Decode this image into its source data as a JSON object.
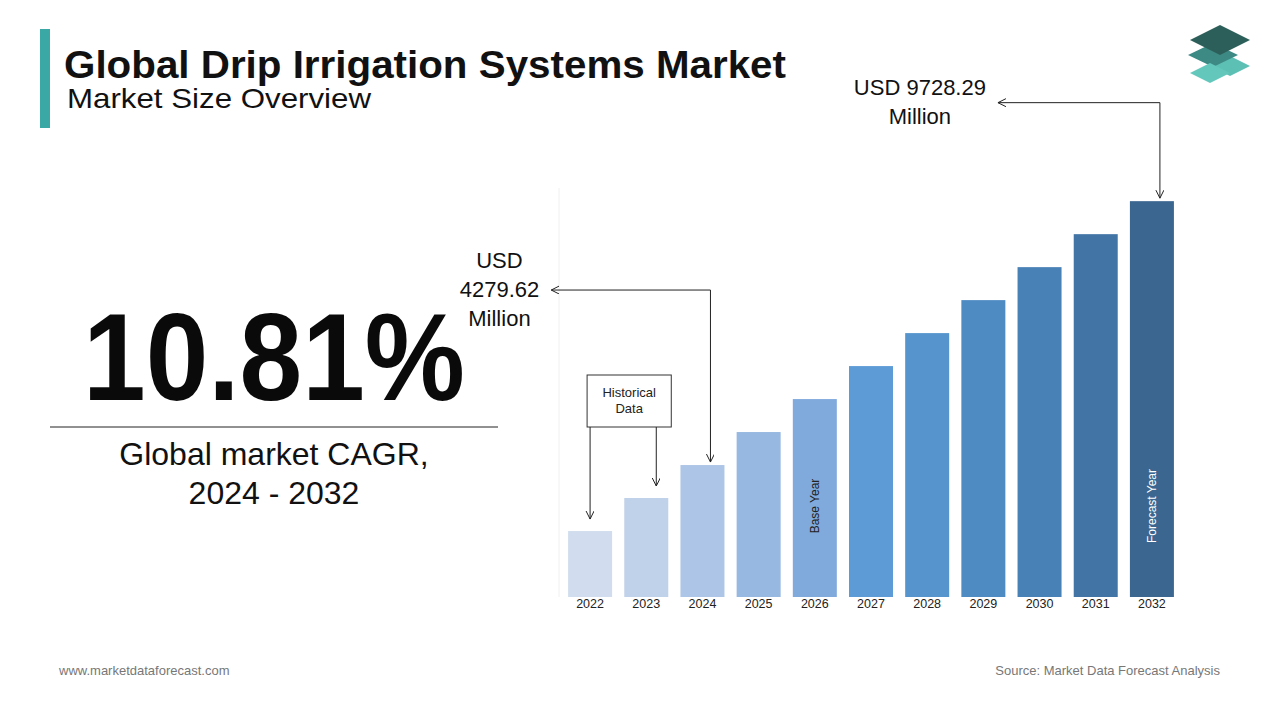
{
  "chart_data": {
    "type": "bar",
    "title": "Global Drip Irrigation Systems Market",
    "subtitle": "Market Size Overview",
    "categories": [
      "2022",
      "2023",
      "2024",
      "2025",
      "2026",
      "2027",
      "2028",
      "2029",
      "2030",
      "2031",
      "2032"
    ],
    "values": [
      2917,
      3599,
      4279.62,
      4961,
      5642,
      6323,
      7004,
      7685,
      8366,
      9047,
      9728.29
    ],
    "value_labels": [
      null,
      null,
      "USD 4279.62 Million",
      null,
      null,
      null,
      null,
      null,
      null,
      null,
      "USD 9728.29 Million"
    ],
    "data_labels": true,
    "colors": [
      "#d1ddee",
      "#c0d1ea",
      "#adc5e6",
      "#97b8e0",
      "#80a9dc",
      "#5d9bd6",
      "#5594cd",
      "#4e8bc3",
      "#4881b6",
      "#4275a6",
      "#3b6690"
    ],
    "ylim": [
      1555,
      10000
    ],
    "tick_labels": "x",
    "grid": false,
    "cagr": {
      "value": 10.81,
      "label": "10.81%",
      "caption": "Global market CAGR, 2024 - 2032"
    },
    "historical": {
      "text": "Historical Data",
      "categories": [
        "2022",
        "2023"
      ]
    },
    "annotations": [
      {
        "category": "2026",
        "text": "Base Year"
      },
      {
        "category": "2032",
        "text": "Forecast Year"
      }
    ]
  },
  "footer": {
    "website": "www.marketdataforecast.com",
    "source": "Source: Market Data Forecast Analysis"
  }
}
